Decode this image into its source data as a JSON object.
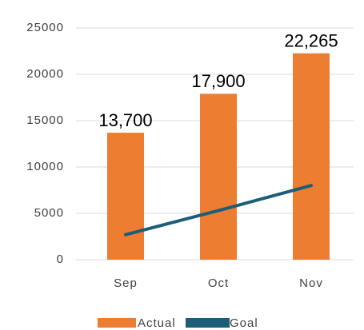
{
  "chart_data": {
    "type": "bar_line",
    "categories": [
      "Sep",
      "Oct",
      "Nov"
    ],
    "series": [
      {
        "name": "Actual",
        "type": "bar",
        "color": "#ed7d31",
        "values": [
          13700,
          17900,
          22265
        ],
        "value_labels": [
          "13,700",
          "17,900",
          "22,265"
        ]
      },
      {
        "name": "Goal",
        "type": "line",
        "color": "#1e5d7a",
        "values": [
          2700,
          5300,
          8000
        ]
      }
    ],
    "ylim": [
      0,
      25000
    ],
    "yticks": [
      0,
      5000,
      10000,
      15000,
      20000,
      25000
    ],
    "grid": true,
    "legend": "bottom"
  }
}
